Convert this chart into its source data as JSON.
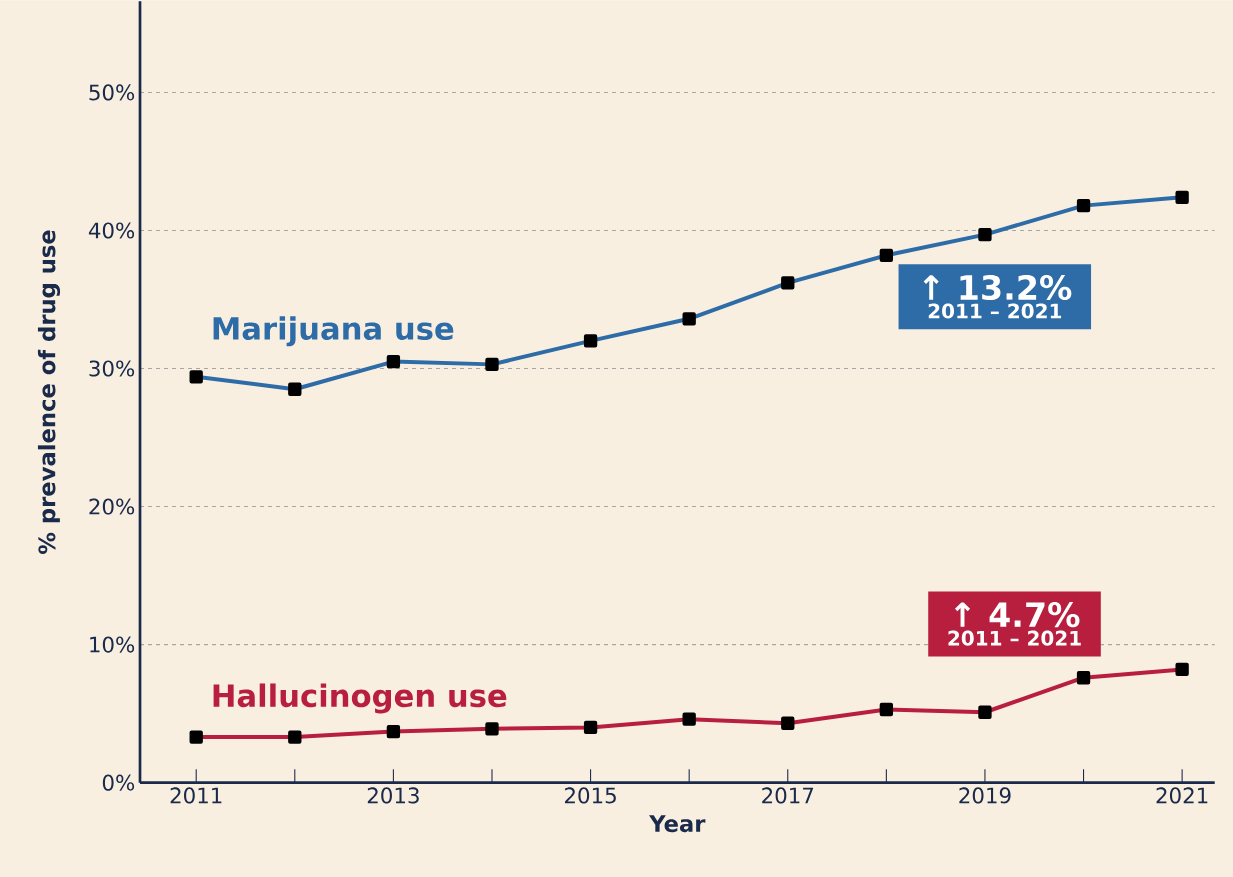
{
  "chart_data": {
    "type": "line",
    "xlabel": "Year",
    "ylabel": "% prevalence of drug use",
    "x": [
      2011,
      2012,
      2013,
      2014,
      2015,
      2016,
      2017,
      2018,
      2019,
      2020,
      2021
    ],
    "series": [
      {
        "name": "Marijuana use",
        "color": "#2e6ca8",
        "values": [
          29.4,
          28.5,
          30.5,
          30.3,
          32.0,
          33.6,
          36.2,
          38.2,
          39.7,
          41.8,
          42.4
        ]
      },
      {
        "name": "Hallucinogen use",
        "color": "#b81f3e",
        "values": [
          3.3,
          3.3,
          3.7,
          3.9,
          4.0,
          4.6,
          4.3,
          5.3,
          5.1,
          7.6,
          8.2
        ]
      }
    ],
    "annotations": [
      "↑ 13.2%",
      "2011 – 2021",
      "↑ 4.7%",
      "2011 – 2021"
    ],
    "xlim": [
      2010.43,
      2021.33
    ],
    "ylim": [
      0,
      56.6
    ],
    "xticks": [
      2011,
      {
        "value": 2012,
        "label": null
      },
      2013,
      {
        "value": 2014,
        "label": null
      },
      2015,
      {
        "value": 2016,
        "label": null
      },
      2017,
      {
        "value": 2018,
        "label": null
      },
      2019,
      {
        "value": 2020,
        "label": null
      },
      2021
    ],
    "yticks": [
      {
        "value": 0,
        "label": "0%"
      },
      {
        "value": 10,
        "label": "10%"
      },
      {
        "value": 20,
        "label": "20%"
      },
      {
        "value": 30,
        "label": "30%"
      },
      {
        "value": 40,
        "label": "40%"
      },
      {
        "value": 50,
        "label": "50%"
      }
    ],
    "grid": "y",
    "marker": "square",
    "line_style": "solid"
  }
}
